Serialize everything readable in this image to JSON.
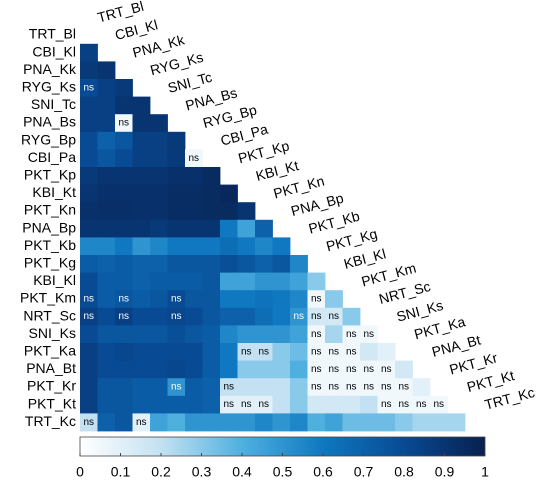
{
  "chart_data": {
    "type": "heatmap",
    "categories": [
      "TRT_Bl",
      "CBI_Kl",
      "PNA_Kk",
      "RYG_Ks",
      "SNI_Tc",
      "PNA_Bs",
      "RYG_Bp",
      "CBI_Pa",
      "PKT_Kp",
      "KBI_Kt",
      "PKT_Kn",
      "PNA_Bp",
      "PKT_Kb",
      "PKT_Kg",
      "KBI_Kl",
      "PKT_Km",
      "NRT_Sc",
      "SNI_Ks",
      "PKT_Ka",
      "PNA_Bt",
      "PKT_Kr",
      "PKT_Kt",
      "TRT_Kc"
    ],
    "values": [
      [],
      [
        0.85
      ],
      [
        0.88,
        0.9
      ],
      [
        0.8,
        0.85,
        0.88
      ],
      [
        0.85,
        0.85,
        0.9,
        0.9
      ],
      [
        0.85,
        0.85,
        0.05,
        0.9,
        0.9
      ],
      [
        0.8,
        0.7,
        0.75,
        0.85,
        0.85,
        0.88
      ],
      [
        0.8,
        0.75,
        0.8,
        0.85,
        0.85,
        0.88,
        0.05
      ],
      [
        0.88,
        0.9,
        0.9,
        0.9,
        0.9,
        0.92,
        0.92,
        0.95
      ],
      [
        0.9,
        0.92,
        0.92,
        0.92,
        0.92,
        0.94,
        0.94,
        0.95,
        0.96
      ],
      [
        0.92,
        0.93,
        0.93,
        0.92,
        0.92,
        0.94,
        0.94,
        0.95,
        0.95,
        0.9
      ],
      [
        0.9,
        0.9,
        0.9,
        0.9,
        0.88,
        0.9,
        0.9,
        0.9,
        0.6,
        0.45,
        0.7
      ],
      [
        0.55,
        0.55,
        0.6,
        0.5,
        0.55,
        0.6,
        0.6,
        0.6,
        0.65,
        0.6,
        0.55,
        0.6
      ],
      [
        0.72,
        0.7,
        0.72,
        0.7,
        0.7,
        0.75,
        0.75,
        0.75,
        0.78,
        0.75,
        0.7,
        0.75,
        0.55
      ],
      [
        0.8,
        0.72,
        0.72,
        0.7,
        0.72,
        0.72,
        0.72,
        0.75,
        0.45,
        0.45,
        0.5,
        0.5,
        0.45,
        0.3
      ],
      [
        0.8,
        0.72,
        0.75,
        0.72,
        0.75,
        0.8,
        0.75,
        0.75,
        0.6,
        0.6,
        0.62,
        0.6,
        0.55,
        0.05,
        0.3
      ],
      [
        0.85,
        0.8,
        0.85,
        0.8,
        0.8,
        0.82,
        0.8,
        0.75,
        0.7,
        0.7,
        0.65,
        0.6,
        0.5,
        0.15,
        0.15,
        0.3
      ],
      [
        0.8,
        0.75,
        0.75,
        0.75,
        0.75,
        0.78,
        0.75,
        0.72,
        0.55,
        0.5,
        0.5,
        0.5,
        0.45,
        0.05,
        0.25,
        0.05,
        0.05
      ],
      [
        0.85,
        0.8,
        0.82,
        0.8,
        0.8,
        0.8,
        0.8,
        0.72,
        0.6,
        0.2,
        0.2,
        0.3,
        0.35,
        0.05,
        0.05,
        0.05,
        0.15,
        0.1
      ],
      [
        0.85,
        0.8,
        0.8,
        0.8,
        0.8,
        0.82,
        0.8,
        0.72,
        0.6,
        0.3,
        0.3,
        0.3,
        0.4,
        0.05,
        0.05,
        0.05,
        0.05,
        0.05,
        0.15
      ],
      [
        0.85,
        0.75,
        0.75,
        0.72,
        0.72,
        0.5,
        0.72,
        0.7,
        0.2,
        0.2,
        0.2,
        0.2,
        0.3,
        0.05,
        0.05,
        0.05,
        0.05,
        0.05,
        0.05,
        0.1
      ],
      [
        0.85,
        0.75,
        0.75,
        0.72,
        0.72,
        0.72,
        0.72,
        0.7,
        0.1,
        0.1,
        0.1,
        0.2,
        0.3,
        0.15,
        0.15,
        0.15,
        0.2,
        0.05,
        0.05,
        0.05,
        0.05
      ],
      [
        0.2,
        0.7,
        0.75,
        0.1,
        0.45,
        0.4,
        0.5,
        0.5,
        0.5,
        0.5,
        0.55,
        0.5,
        0.55,
        0.4,
        0.45,
        0.35,
        0.35,
        0.35,
        0.3,
        0.25,
        0.25,
        0.25
      ]
    ],
    "ns_label": "ns",
    "ns_cells": [
      [
        3,
        0
      ],
      [
        5,
        2
      ],
      [
        7,
        6
      ],
      [
        15,
        0
      ],
      [
        15,
        2
      ],
      [
        15,
        5
      ],
      [
        15,
        13
      ],
      [
        16,
        0
      ],
      [
        16,
        2
      ],
      [
        16,
        5
      ],
      [
        16,
        12
      ],
      [
        16,
        13
      ],
      [
        16,
        14
      ],
      [
        17,
        13
      ],
      [
        17,
        15
      ],
      [
        17,
        16
      ],
      [
        18,
        9
      ],
      [
        18,
        10
      ],
      [
        18,
        13
      ],
      [
        18,
        14
      ],
      [
        18,
        15
      ],
      [
        19,
        13
      ],
      [
        19,
        14
      ],
      [
        19,
        15
      ],
      [
        19,
        16
      ],
      [
        19,
        17
      ],
      [
        20,
        5
      ],
      [
        20,
        8
      ],
      [
        20,
        13
      ],
      [
        20,
        14
      ],
      [
        20,
        15
      ],
      [
        20,
        16
      ],
      [
        20,
        17
      ],
      [
        20,
        18
      ],
      [
        21,
        8
      ],
      [
        21,
        9
      ],
      [
        21,
        10
      ],
      [
        21,
        17
      ],
      [
        21,
        18
      ],
      [
        21,
        19
      ],
      [
        21,
        20
      ],
      [
        22,
        0
      ],
      [
        22,
        3
      ]
    ],
    "colors": [
      "#ffffff",
      "#c3e1f2",
      "#4fb0e0",
      "#0f78c0",
      "#084a94",
      "#08204f"
    ],
    "clim": [
      0,
      1
    ],
    "cticks": [
      0,
      0.1,
      0.2,
      0.3,
      0.4,
      0.5,
      0.6,
      0.7,
      0.8,
      0.9,
      1
    ]
  }
}
